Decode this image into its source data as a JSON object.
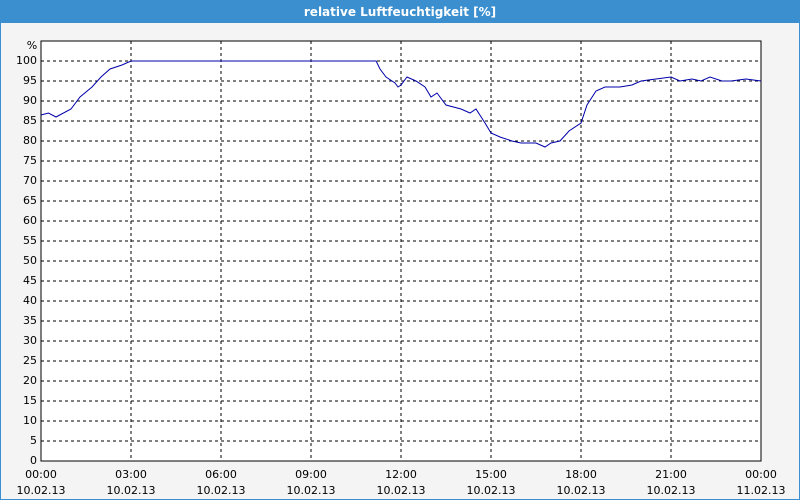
{
  "chart_data": {
    "type": "line",
    "title": "relative Luftfeuchtigkeit [%]",
    "y_label": "%",
    "x": [
      0,
      0.25,
      0.5,
      1.0,
      1.3,
      1.7,
      2.0,
      2.3,
      2.7,
      3.0,
      11.17,
      11.3,
      11.5,
      11.8,
      11.9,
      12.0,
      12.2,
      12.5,
      12.8,
      13.0,
      13.2,
      13.5,
      14.0,
      14.3,
      14.5,
      14.8,
      15.0,
      15.3,
      15.7,
      16.0,
      16.5,
      16.8,
      17.0,
      17.3,
      17.6,
      18.0,
      18.2,
      18.5,
      18.8,
      19.3,
      19.7,
      20.0,
      20.5,
      21.0,
      21.3,
      21.7,
      22.0,
      22.3,
      22.7,
      23.0,
      23.5,
      24.0
    ],
    "series": [
      {
        "name": "relative Luftfeuchtigkeit",
        "color": "#0000aa",
        "values": [
          86.5,
          87,
          86,
          88,
          91,
          93.5,
          96,
          98,
          99,
          100,
          100,
          98,
          96,
          94.5,
          93.5,
          94,
          96,
          95,
          93.5,
          91,
          92,
          89,
          88,
          87,
          88,
          84.5,
          82,
          81,
          80,
          79.5,
          79.5,
          78.5,
          79.5,
          80,
          82.5,
          84.5,
          89,
          92.5,
          93.5,
          93.5,
          94,
          95,
          95.5,
          96,
          95,
          95.5,
          95,
          96,
          95,
          95,
          95.5,
          95
        ]
      }
    ],
    "xlim": [
      0,
      24
    ],
    "xticks": [
      {
        "value": 0,
        "label": "00:00",
        "date": "10.02.13"
      },
      {
        "value": 3,
        "label": "03:00",
        "date": "10.02.13"
      },
      {
        "value": 6,
        "label": "06:00",
        "date": "10.02.13"
      },
      {
        "value": 9,
        "label": "09:00",
        "date": "10.02.13"
      },
      {
        "value": 12,
        "label": "12:00",
        "date": "10.02.13"
      },
      {
        "value": 15,
        "label": "15:00",
        "date": "10.02.13"
      },
      {
        "value": 18,
        "label": "18:00",
        "date": "10.02.13"
      },
      {
        "value": 21,
        "label": "21:00",
        "date": "10.02.13"
      },
      {
        "value": 24,
        "label": "00:00",
        "date": "11.02.13"
      }
    ],
    "ylim": [
      0,
      105
    ],
    "yticks": [
      0,
      5,
      10,
      15,
      20,
      25,
      30,
      35,
      40,
      45,
      50,
      55,
      60,
      65,
      70,
      75,
      80,
      85,
      90,
      95,
      100
    ],
    "grid": true
  }
}
